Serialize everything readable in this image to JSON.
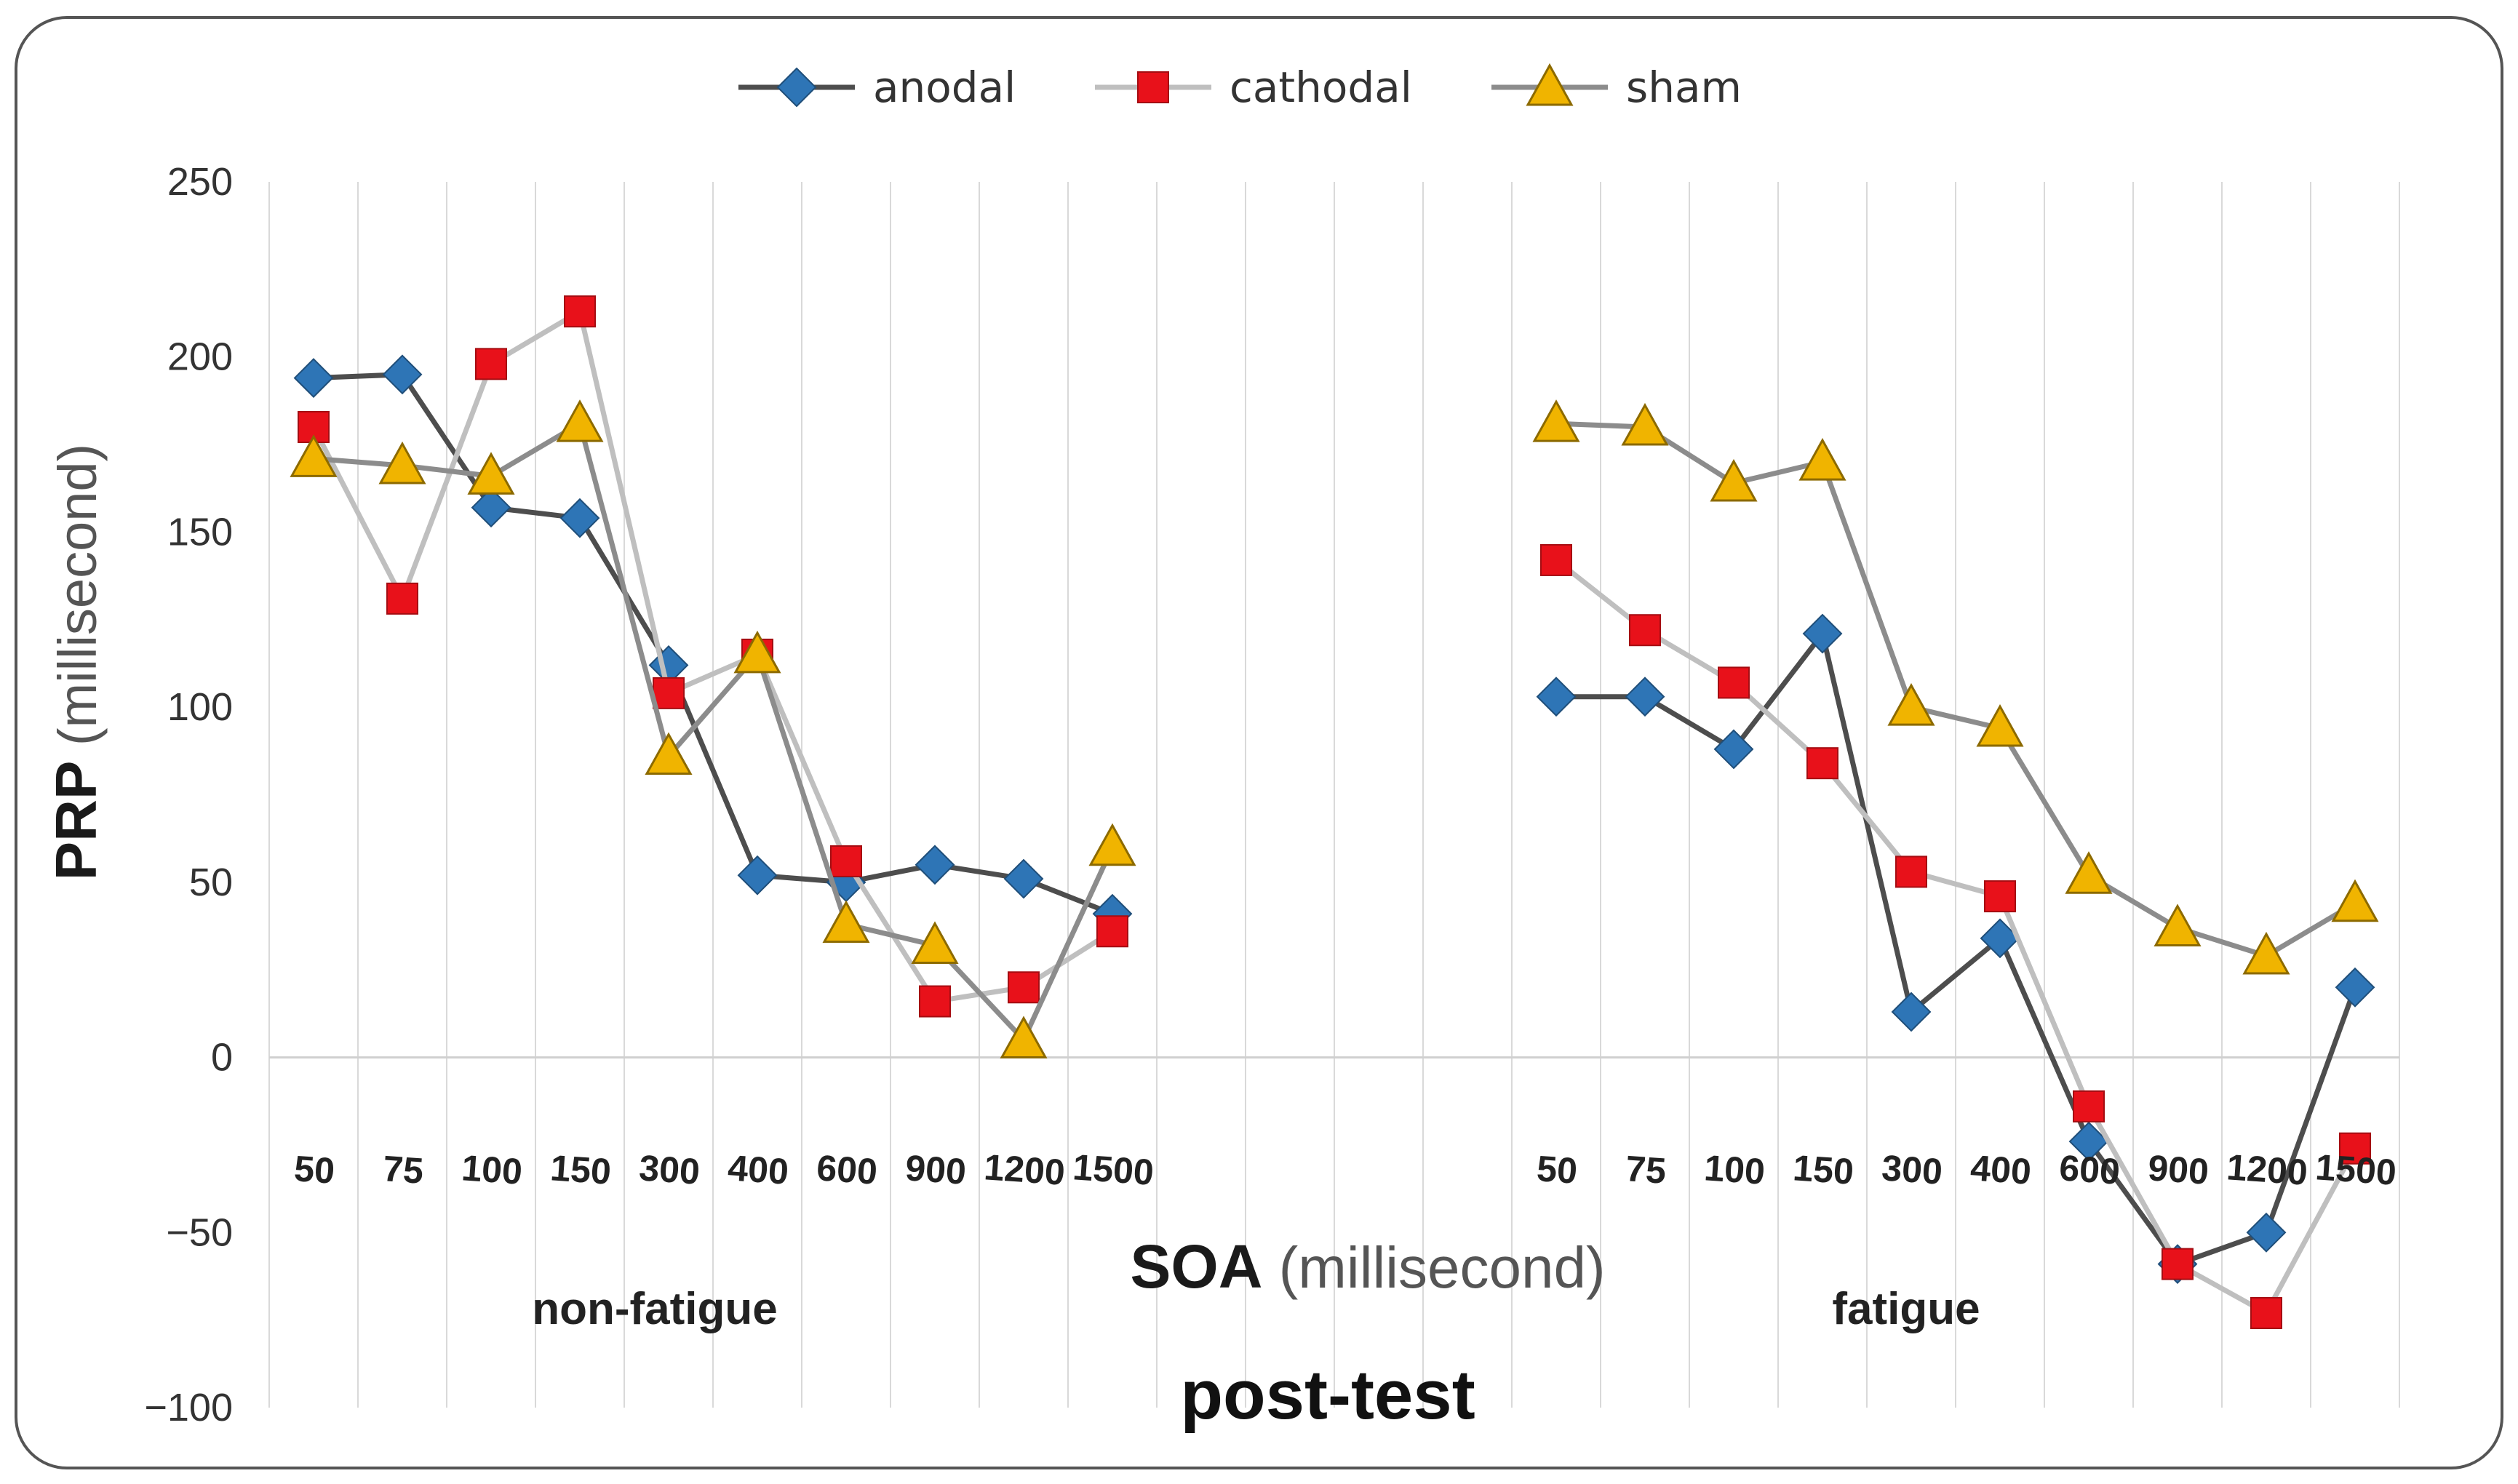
{
  "chart_data": {
    "type": "line",
    "title": "post-test",
    "xlabel": {
      "bold": "SOA",
      "rest": " (millisecond)"
    },
    "ylabel": {
      "bold": "PRP",
      "rest": " (millisecond)"
    },
    "ylim": [
      -100,
      250
    ],
    "yticks": [
      {
        "value": 250,
        "label": "250"
      },
      {
        "value": 200,
        "label": "200"
      },
      {
        "value": 150,
        "label": "150"
      },
      {
        "value": 100,
        "label": "100"
      },
      {
        "value": 50,
        "label": "50"
      },
      {
        "value": 0,
        "label": "0"
      },
      {
        "value": -50,
        "label": "−50"
      },
      {
        "value": -100,
        "label": "−100"
      }
    ],
    "categories": [
      "50",
      "75",
      "100",
      "150",
      "300",
      "400",
      "600",
      "900",
      "1200",
      "1500",
      "",
      "",
      "",
      "",
      "50",
      "75",
      "100",
      "150",
      "300",
      "400",
      "600",
      "900",
      "1200",
      "1500"
    ],
    "groups": [
      {
        "label": "non-fatigue",
        "start": 0,
        "end": 9
      },
      {
        "label": "fatigue",
        "start": 14,
        "end": 23
      }
    ],
    "series": [
      {
        "name": "anodal",
        "color": "#4d4d4d",
        "marker": "diamond",
        "markerColor": "#2e75b6",
        "values": [
          194,
          195,
          157,
          154,
          112,
          52,
          50,
          55,
          51,
          41,
          null,
          null,
          null,
          null,
          103,
          103,
          88,
          121,
          13,
          34,
          -24,
          -59,
          -50,
          20
        ]
      },
      {
        "name": "cathodal",
        "color": "#bfbfbf",
        "marker": "square",
        "markerColor": "#e8111a",
        "values": [
          180,
          131,
          198,
          213,
          104,
          115,
          56,
          16,
          20,
          36,
          null,
          null,
          null,
          null,
          142,
          122,
          107,
          84,
          53,
          46,
          -14,
          -59,
          -73,
          -26
        ]
      },
      {
        "name": "sham",
        "color": "#8c8c8c",
        "marker": "triangle",
        "markerColor": "#f0b400",
        "values": [
          171,
          169,
          166,
          181,
          86,
          115,
          38,
          32,
          5,
          60,
          null,
          null,
          null,
          null,
          181,
          180,
          164,
          170,
          100,
          94,
          52,
          37,
          29,
          44
        ]
      }
    ],
    "legend": {
      "position": "top-center"
    },
    "grid": true
  }
}
